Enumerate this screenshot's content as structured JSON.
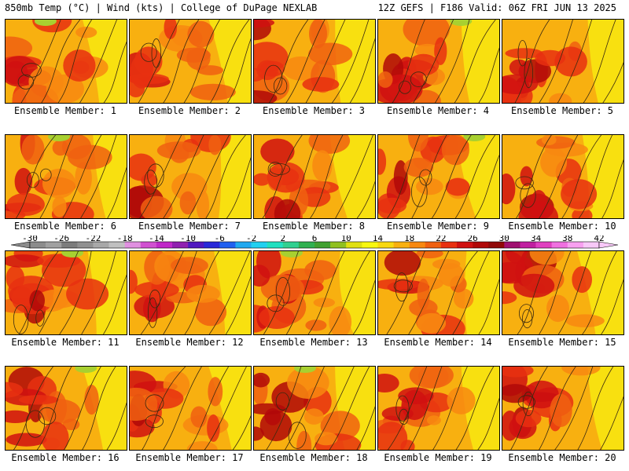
{
  "header": {
    "left": "850mb Temp (°C) | Wind (kts) | College of DuPage NEXLAB",
    "right": "12Z GEFS | F186 Valid: 06Z FRI JUN 13 2025"
  },
  "members": [
    {
      "label": "Ensemble Member: 1"
    },
    {
      "label": "Ensemble Member: 2"
    },
    {
      "label": "Ensemble Member: 3"
    },
    {
      "label": "Ensemble Member: 4"
    },
    {
      "label": "Ensemble Member: 5"
    },
    {
      "label": "Ensemble Member: 6"
    },
    {
      "label": "Ensemble Member: 7"
    },
    {
      "label": "Ensemble Member: 8"
    },
    {
      "label": "Ensemble Member: 9"
    },
    {
      "label": "Ensemble Member: 10"
    },
    {
      "label": "Ensemble Member: 11"
    },
    {
      "label": "Ensemble Member: 12"
    },
    {
      "label": "Ensemble Member: 13"
    },
    {
      "label": "Ensemble Member: 14"
    },
    {
      "label": "Ensemble Member: 15"
    },
    {
      "label": "Ensemble Member: 16"
    },
    {
      "label": "Ensemble Member: 17"
    },
    {
      "label": "Ensemble Member: 18"
    },
    {
      "label": "Ensemble Member: 19"
    },
    {
      "label": "Ensemble Member: 20"
    }
  ],
  "colorbar": {
    "tick_labels": [
      "-30",
      "-26",
      "-22",
      "-18",
      "-14",
      "-10",
      "-6",
      "-2",
      "2",
      "6",
      "10",
      "14",
      "18",
      "22",
      "26",
      "30",
      "34",
      "38",
      "42"
    ],
    "colors": [
      "#8c8c8c",
      "#a0a0a0",
      "#7c7c7c",
      "#909090",
      "#a8a8a8",
      "#c0c0c0",
      "#e090e0",
      "#d050d0",
      "#c028c8",
      "#9020b0",
      "#5018c0",
      "#2828d8",
      "#2060f0",
      "#20a8f0",
      "#20d0f0",
      "#20e0c0",
      "#30d090",
      "#30b050",
      "#40a030",
      "#90c020",
      "#e0e010",
      "#f8f810",
      "#f8d810",
      "#f8b010",
      "#f88810",
      "#f06010",
      "#e83010",
      "#d01010",
      "#b00808",
      "#900808",
      "#a01070",
      "#c020a0",
      "#e040c0",
      "#f070e0",
      "#f8a0f0",
      "#f8c8f8"
    ]
  }
}
